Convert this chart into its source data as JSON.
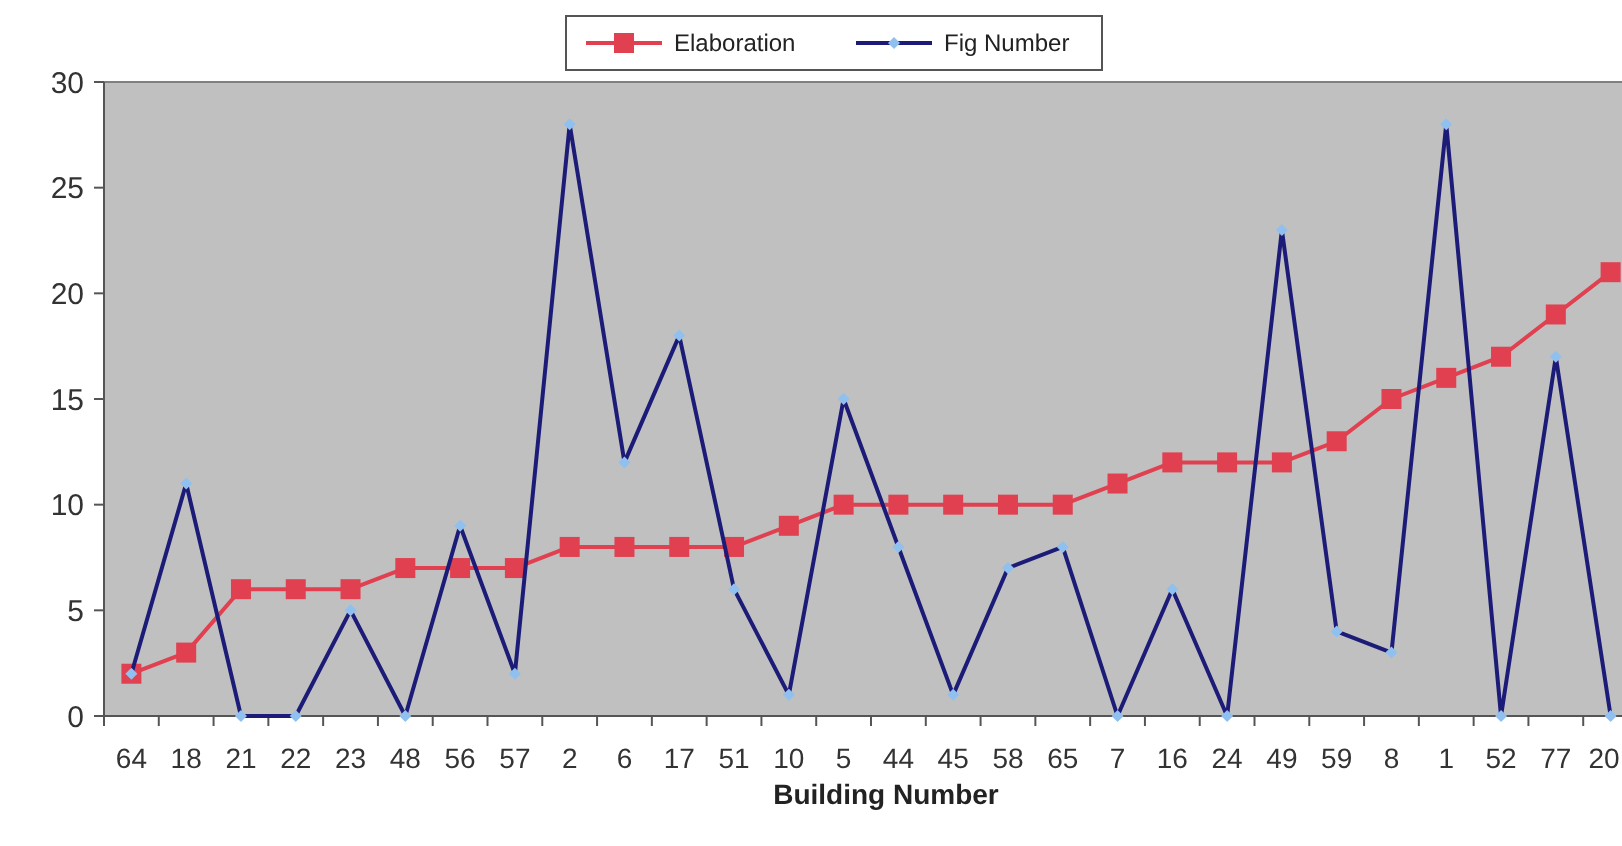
{
  "chart_data": {
    "type": "line",
    "xlabel": "Building Number",
    "categories": [
      "64",
      "18",
      "21",
      "22",
      "23",
      "48",
      "56",
      "57",
      "2",
      "6",
      "17",
      "51",
      "10",
      "5",
      "44",
      "45",
      "58",
      "65",
      "7",
      "16",
      "24",
      "49",
      "59",
      "8",
      "1",
      "52",
      "77",
      "20"
    ],
    "series": [
      {
        "name": "Elaboration",
        "color": "#e0404f",
        "marker": "square",
        "values": [
          2,
          3,
          6,
          6,
          6,
          7,
          7,
          7,
          8,
          8,
          8,
          8,
          9,
          10,
          10,
          10,
          10,
          10,
          11,
          12,
          12,
          12,
          13,
          15,
          16,
          17,
          19,
          21
        ]
      },
      {
        "name": "Fig Number",
        "color": "#1c1c78",
        "marker": "diamond",
        "values": [
          2,
          11,
          0,
          0,
          5,
          0,
          9,
          2,
          28,
          12,
          18,
          6,
          1,
          15,
          8,
          1,
          7,
          8,
          0,
          6,
          0,
          23,
          4,
          3,
          28,
          0,
          17,
          0
        ]
      }
    ],
    "ylim": [
      0,
      30
    ],
    "yticks": [
      0,
      5,
      10,
      15,
      20,
      25,
      30
    ],
    "legend": "top",
    "grid": false
  }
}
